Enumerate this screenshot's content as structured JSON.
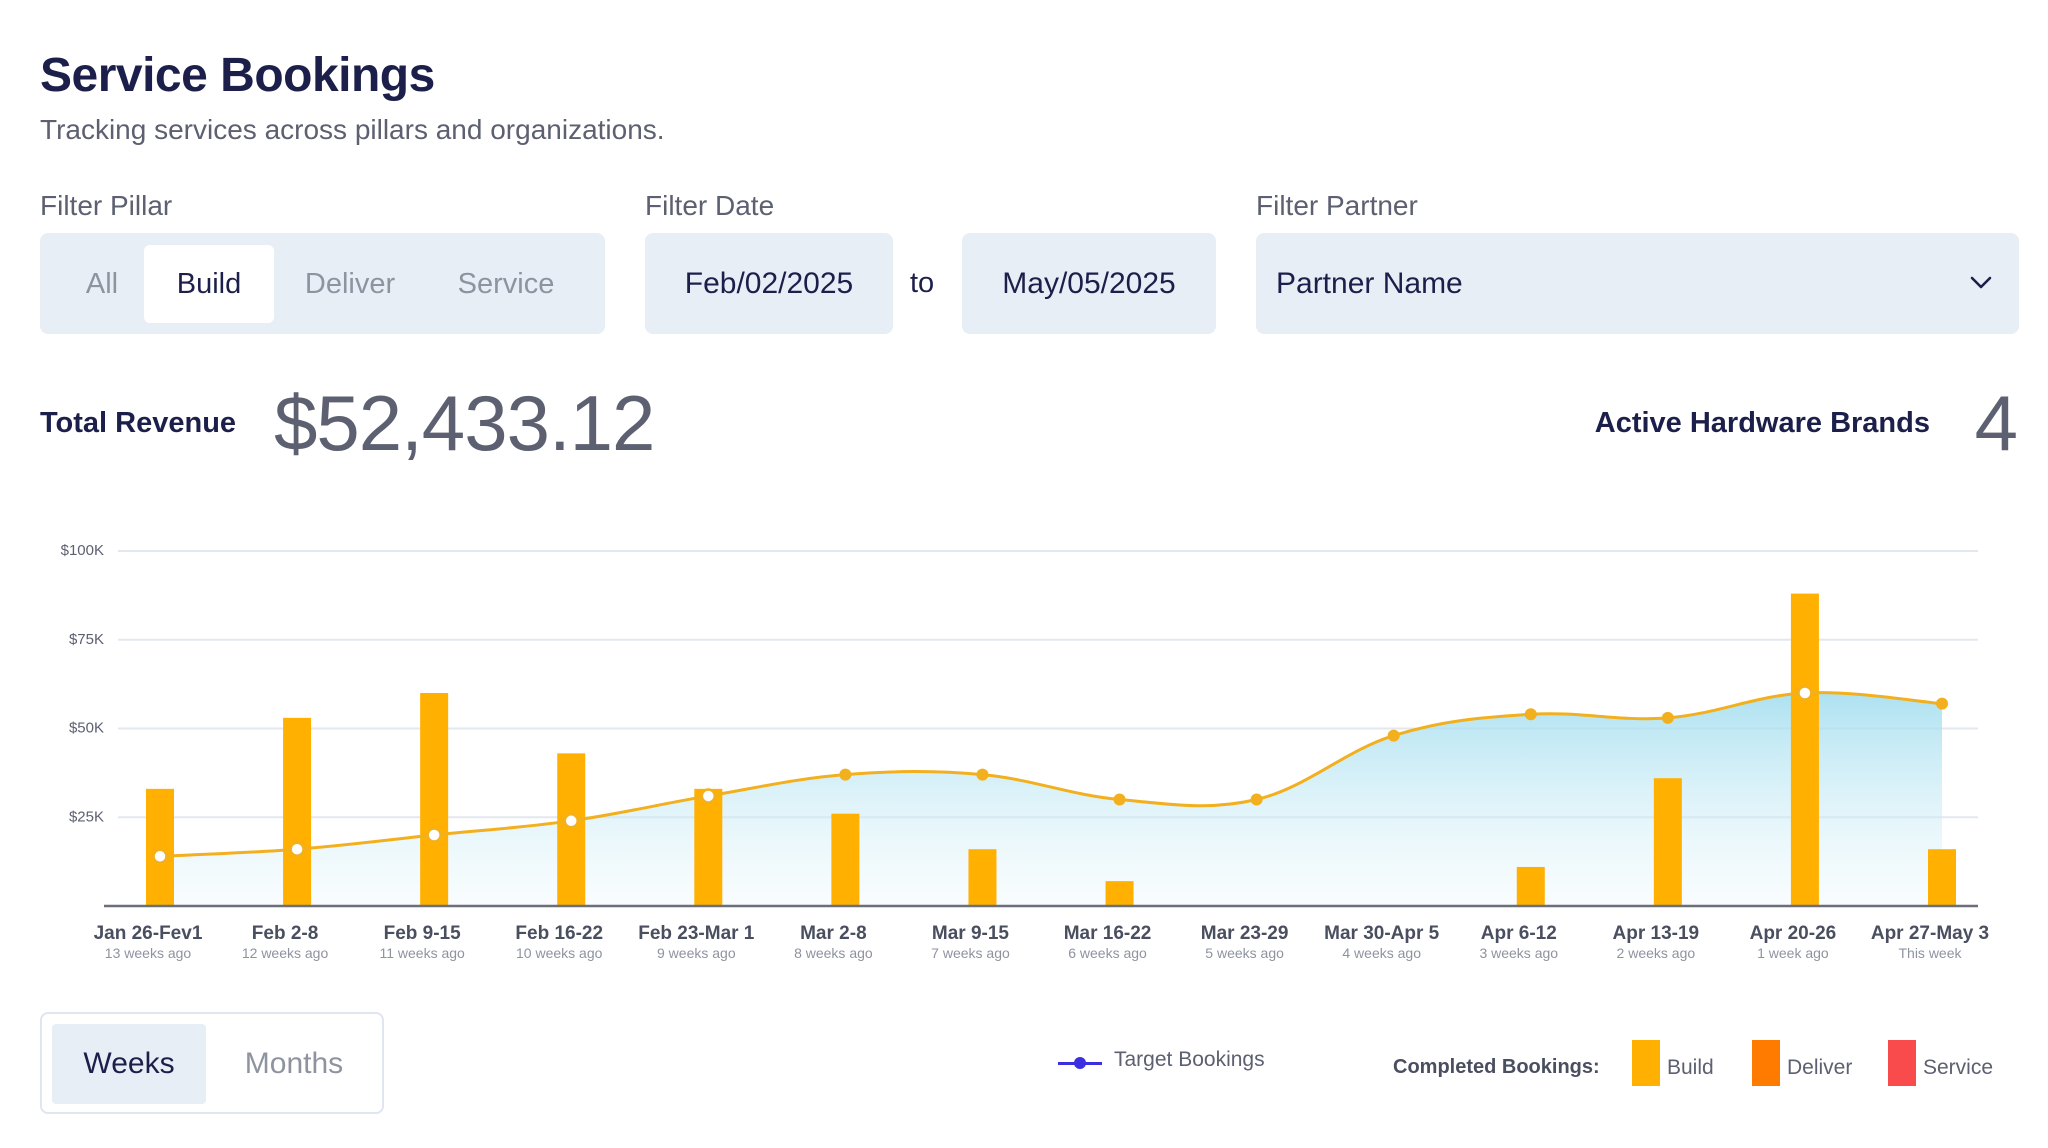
{
  "header": {
    "title": "Service Bookings",
    "subtitle": "Tracking services across pillars and organizations."
  },
  "filters": {
    "pillar": {
      "label": "Filter Pillar",
      "options": [
        "All",
        "Build",
        "Deliver",
        "Service"
      ],
      "selected": "Build"
    },
    "date": {
      "label": "Filter Date",
      "from": "Feb/02/2025",
      "to_word": "to",
      "to": "May/05/2025"
    },
    "partner": {
      "label": "Filter Partner",
      "value": "Partner Name",
      "icon": "chevron-down-icon"
    }
  },
  "kpis": {
    "revenue_label": "Total Revenue",
    "revenue_value": "$52,433.12",
    "brands_label": "Active Hardware Brands",
    "brands_value": "4"
  },
  "chart_data": {
    "type": "bar",
    "categories": [
      "Jan 26-Fev1",
      "Feb 2-8",
      "Feb 9-15",
      "Feb 16-22",
      "Feb 23-Mar 1",
      "Mar 2-8",
      "Mar 9-15",
      "Mar 16-22",
      "Mar 23-29",
      "Mar 30-Apr 5",
      "Apr 6-12",
      "Apr 13-19",
      "Apr 20-26",
      "Apr 27-May 3"
    ],
    "sublabels": [
      "13 weeks ago",
      "12 weeks ago",
      "11 weeks ago",
      "10 weeks ago",
      "9 weeks ago",
      "8 weeks ago",
      "7 weeks ago",
      "6 weeks ago",
      "5 weeks ago",
      "4 weeks ago",
      "3 weeks ago",
      "2 weeks ago",
      "1 week ago",
      "This week"
    ],
    "y_ticks": [
      "$25K",
      "$50K",
      "$75K",
      "$100K"
    ],
    "y_tick_values": [
      25000,
      50000,
      75000,
      100000
    ],
    "ylim": [
      0,
      100000
    ],
    "series": [
      {
        "name": "Build",
        "kind": "bar",
        "color": "#ffb000",
        "values": [
          33000,
          53000,
          60000,
          43000,
          33000,
          26000,
          16000,
          7000,
          0,
          0,
          11000,
          36000,
          88000,
          16000
        ]
      },
      {
        "name": "Target Bookings",
        "kind": "area-line",
        "color": "#f2b01e",
        "values": [
          14000,
          16000,
          20000,
          24000,
          31000,
          37000,
          37000,
          30000,
          30000,
          48000,
          54000,
          53000,
          60000,
          57000
        ],
        "hollow_points": [
          true,
          true,
          true,
          true,
          true,
          false,
          false,
          false,
          false,
          false,
          false,
          false,
          true,
          false
        ]
      }
    ],
    "grid": true,
    "legend": "bottom-right"
  },
  "period_toggle": {
    "options": [
      "Weeks",
      "Months"
    ],
    "selected": "Weeks"
  },
  "legend": {
    "target_label": "Target Bookings",
    "target_color": "#3b2fe0",
    "completed_label": "Completed Bookings:",
    "items": [
      {
        "label": "Build",
        "color": "#ffb000"
      },
      {
        "label": "Deliver",
        "color": "#ff7b00"
      },
      {
        "label": "Service",
        "color": "#f94b4b"
      }
    ]
  }
}
